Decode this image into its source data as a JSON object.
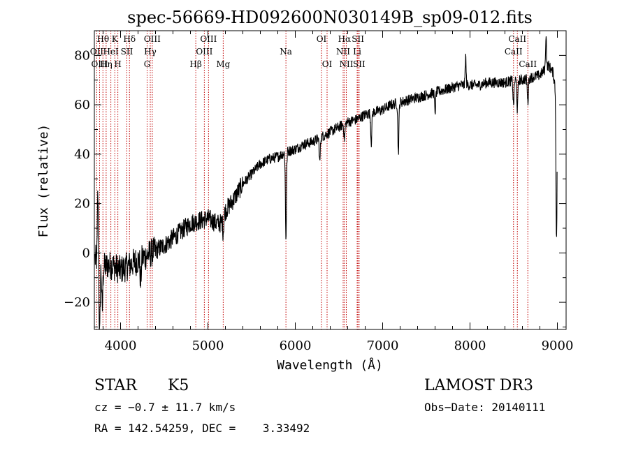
{
  "chart_data": {
    "type": "line",
    "title": "spec-56669-HD092600N030149B_sp09-012.fits",
    "xlabel": "Wavelength (Å)",
    "ylabel": "Flux (relative)",
    "xlim": [
      3700,
      9100
    ],
    "ylim": [
      -31,
      90
    ],
    "x_ticks": [
      4000,
      5000,
      6000,
      7000,
      8000,
      9000
    ],
    "y_ticks": [
      -20,
      0,
      20,
      40,
      60,
      80
    ],
    "x_tick_labels": [
      "4000",
      "5000",
      "6000",
      "7000",
      "8000",
      "9000"
    ],
    "y_tick_labels": [
      "−20",
      "0",
      "20",
      "40",
      "60",
      "80"
    ],
    "grid": false,
    "line_color": "#000000",
    "marker_color": "#c00000",
    "spectrum_anchors": {
      "x": [
        3700,
        3750,
        3800,
        3850,
        3900,
        3950,
        4000,
        4050,
        4100,
        4150,
        4200,
        4250,
        4300,
        4350,
        4400,
        4500,
        4600,
        4700,
        4800,
        4900,
        5000,
        5100,
        5150,
        5200,
        5300,
        5400,
        5500,
        5600,
        5700,
        5800,
        5900,
        6000,
        6100,
        6200,
        6300,
        6400,
        6500,
        6600,
        6700,
        6800,
        6900,
        7000,
        7100,
        7200,
        7300,
        7400,
        7500,
        7600,
        7700,
        7800,
        7900,
        8000,
        8100,
        8200,
        8300,
        8400,
        8500,
        8600,
        8700,
        8800,
        8900,
        8950,
        9000
      ],
      "y": [
        -2,
        -4,
        -6,
        -5,
        -5,
        -6,
        -7,
        -6,
        -5,
        -4,
        -3,
        -2,
        -1,
        0,
        1,
        3,
        6,
        9,
        12,
        13,
        14,
        12,
        12,
        17,
        22,
        28,
        32,
        36,
        38,
        39,
        41,
        42,
        44,
        45,
        47,
        49,
        51,
        53,
        54,
        56,
        57,
        58,
        60,
        61,
        62,
        63,
        64,
        65,
        66,
        67,
        68,
        68,
        68,
        69,
        69,
        69,
        70,
        70,
        71,
        72,
        76,
        73,
        62
      ]
    },
    "spectrum_features": [
      {
        "x": 3760,
        "depth": 30
      },
      {
        "x": 3790,
        "depth": 18
      },
      {
        "x": 4230,
        "depth": 10
      },
      {
        "x": 5175,
        "depth": 6
      },
      {
        "x": 5893,
        "depth": 35
      },
      {
        "x": 6280,
        "depth": 10
      },
      {
        "x": 6563,
        "depth": 6
      },
      {
        "x": 6870,
        "depth": 12
      },
      {
        "x": 7180,
        "depth": 20
      },
      {
        "x": 7600,
        "depth": 8
      },
      {
        "x": 8498,
        "depth": 10
      },
      {
        "x": 8542,
        "depth": 12
      },
      {
        "x": 8662,
        "depth": 10
      },
      {
        "x": 8990,
        "depth": 60
      }
    ],
    "spectrum_spikes": [
      {
        "x": 3740,
        "height": 28
      },
      {
        "x": 7950,
        "height": 12
      },
      {
        "x": 8870,
        "height": 14
      }
    ],
    "lines": [
      {
        "label": "Hθ",
        "x": 3798,
        "row": 0
      },
      {
        "label": "OII",
        "x": 3727,
        "row": 1
      },
      {
        "label": "OIII",
        "x": 3760,
        "row": 2
      },
      {
        "label": "K",
        "x": 3934,
        "row": 0
      },
      {
        "label": "HeI",
        "x": 3889,
        "row": 1
      },
      {
        "label": "Hη",
        "x": 3835,
        "row": 2
      },
      {
        "label": "Hδ",
        "x": 4102,
        "row": 0
      },
      {
        "label": "SII",
        "x": 4072,
        "row": 1
      },
      {
        "label": "H",
        "x": 3969,
        "row": 2
      },
      {
        "label": "OIII",
        "x": 4363,
        "row": 0
      },
      {
        "label": "Hγ",
        "x": 4340,
        "row": 1
      },
      {
        "label": "G",
        "x": 4304,
        "row": 2
      },
      {
        "label": "OIII",
        "x": 5007,
        "row": 0
      },
      {
        "label": "OIII",
        "x": 4959,
        "row": 1
      },
      {
        "label": "Hβ",
        "x": 4861,
        "row": 2
      },
      {
        "label": "Mg",
        "x": 5175,
        "row": 2
      },
      {
        "label": "Na",
        "x": 5893,
        "row": 1
      },
      {
        "label": "OI",
        "x": 6300,
        "row": 0
      },
      {
        "label": "OI",
        "x": 6364,
        "row": 2
      },
      {
        "label": "Hα",
        "x": 6563,
        "row": 0
      },
      {
        "label": "NII",
        "x": 6548,
        "row": 1
      },
      {
        "label": "NII",
        "x": 6584,
        "row": 2
      },
      {
        "label": "SII",
        "x": 6717,
        "row": 0
      },
      {
        "label": "Li",
        "x": 6708,
        "row": 1
      },
      {
        "label": "SII",
        "x": 6731,
        "row": 2
      },
      {
        "label": "CaII",
        "x": 8542,
        "row": 0
      },
      {
        "label": "CaII",
        "x": 8498,
        "row": 1
      },
      {
        "label": "CaII",
        "x": 8662,
        "row": 2
      }
    ]
  },
  "info": {
    "class_label": "STAR",
    "subclass_label": "K5",
    "survey_label": "LAMOST DR3",
    "redshift_text": "cz = −0.7 ± 11.7 km/s",
    "obs_date_text": "Obs−Date: 20140111",
    "coords_text": "RA = 142.54259, DEC =    3.33492"
  }
}
